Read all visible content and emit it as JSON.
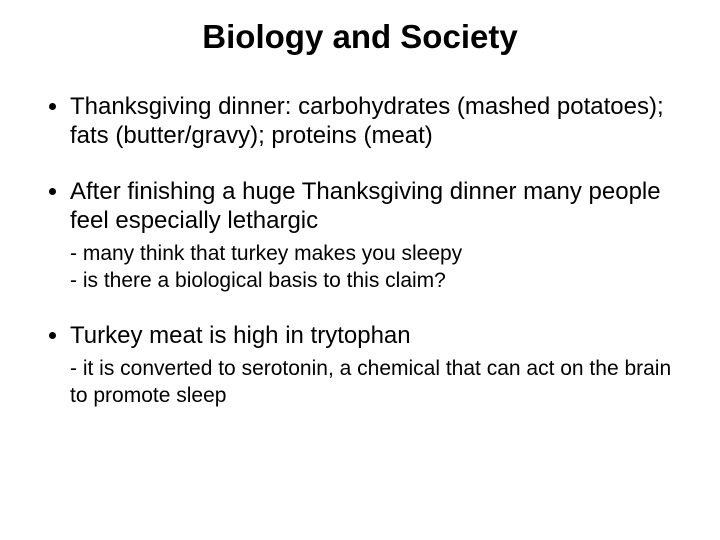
{
  "title": "Biology and Society",
  "bullets": [
    {
      "text": "Thanksgiving dinner:  carbohydrates (mashed potatoes); fats (butter/gravy); proteins (meat)",
      "subs": []
    },
    {
      "text": "After finishing a huge Thanksgiving dinner many people feel especially lethargic",
      "subs": [
        "- many think that turkey makes you sleepy",
        "- is there a biological basis to this claim?"
      ]
    },
    {
      "text": "Turkey meat is high in trytophan",
      "subs": [
        "- it is converted to serotonin, a chemical that can act on the brain to promote sleep"
      ]
    }
  ],
  "colors": {
    "background": "#ffffff",
    "text": "#000000"
  },
  "typography": {
    "title_fontsize": 33,
    "bullet_fontsize": 24,
    "sub_fontsize": 21,
    "font_family": "Arial"
  }
}
